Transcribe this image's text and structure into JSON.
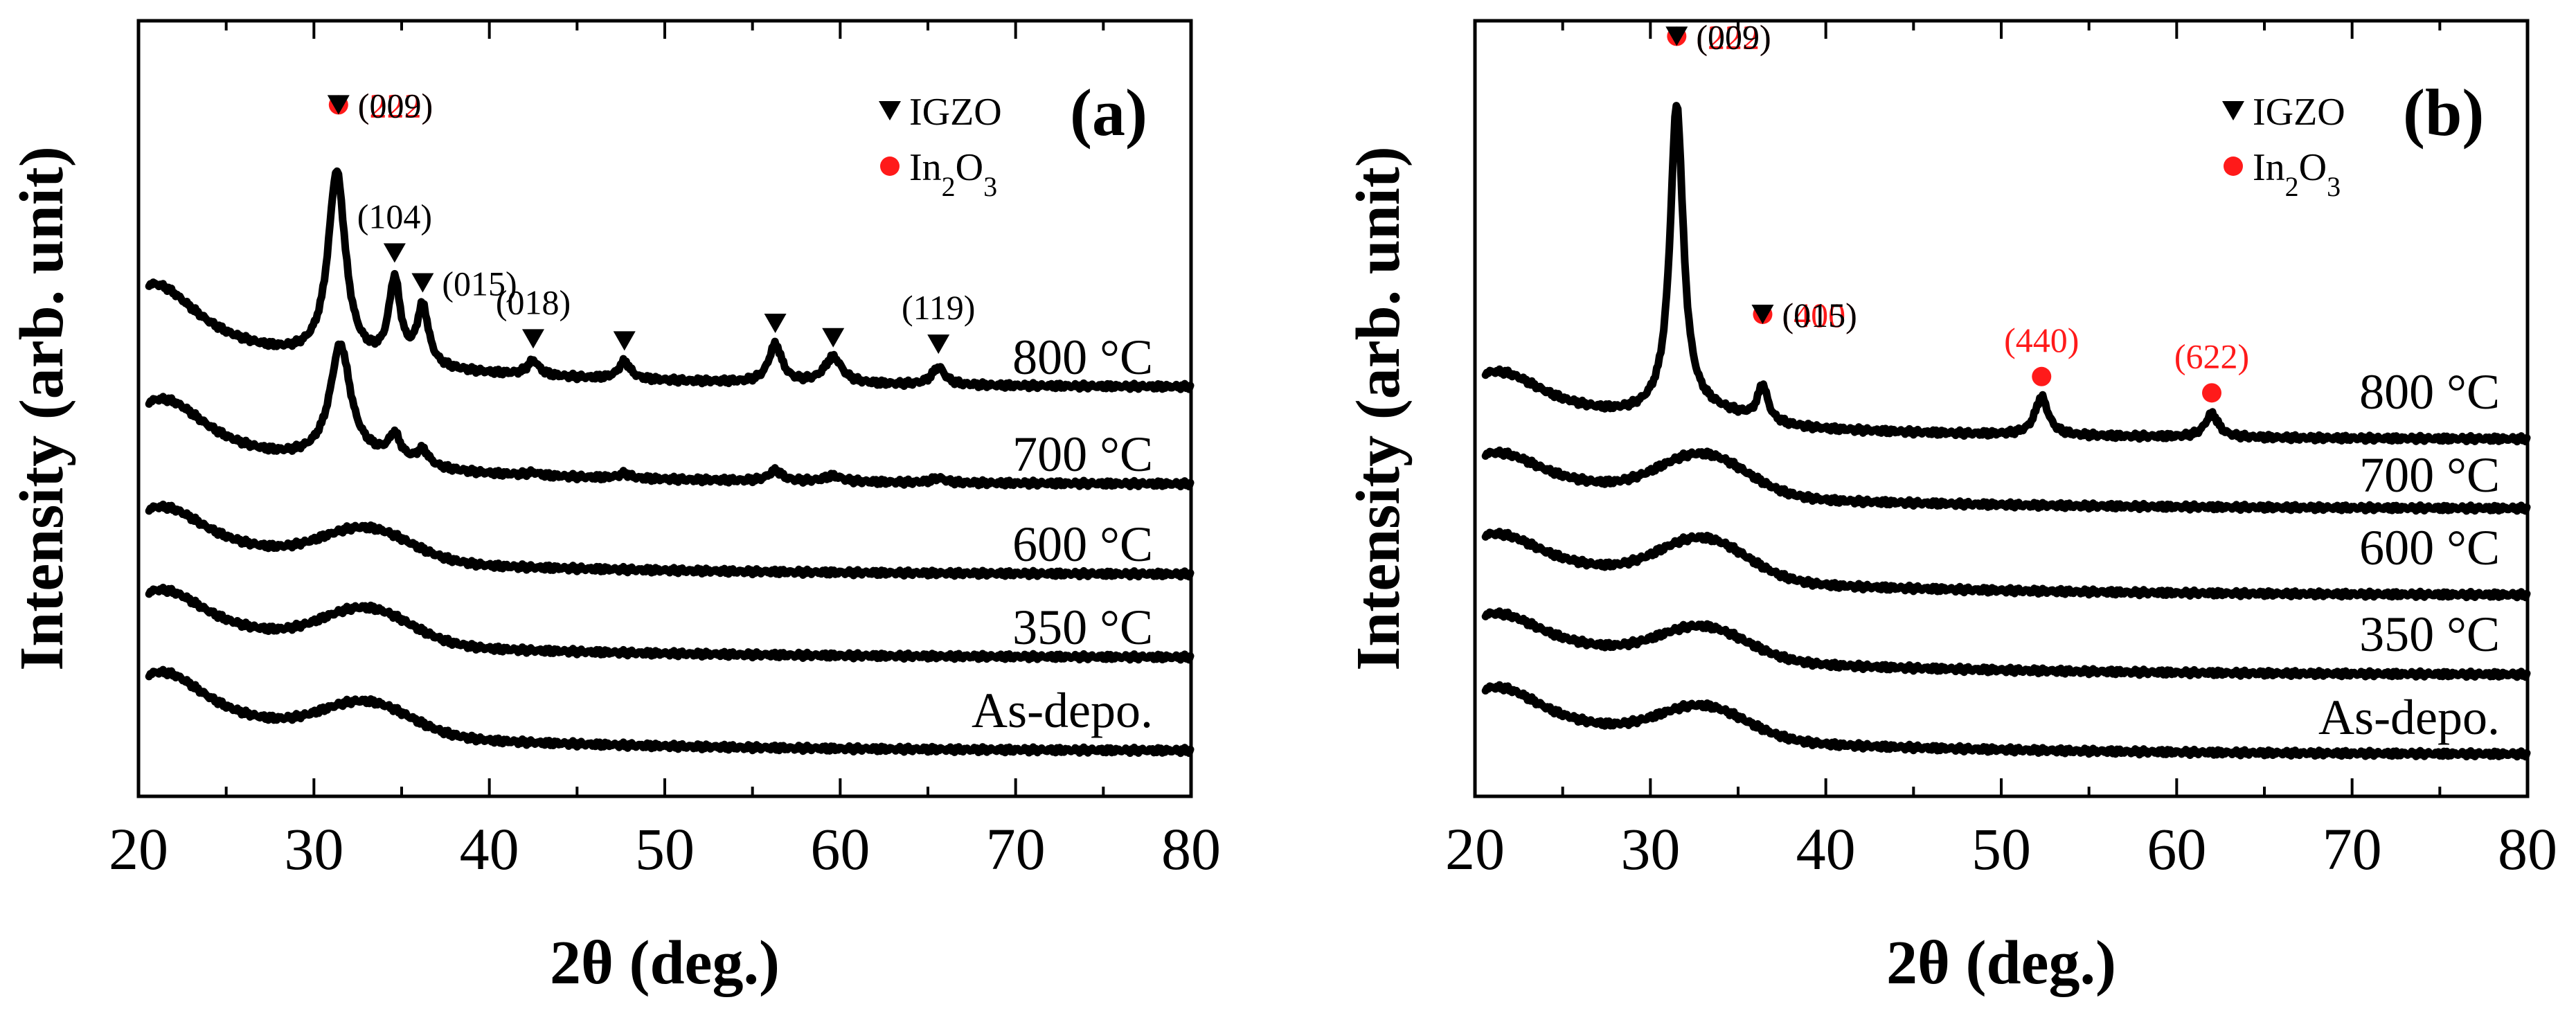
{
  "chart_data": [
    {
      "type": "line",
      "panel_label": "(a)",
      "xlabel": "2θ (deg.)",
      "ylabel": "Intensity (arb. unit)",
      "xlim": [
        20,
        80
      ],
      "xticks": [
        "20",
        "30",
        "40",
        "50",
        "60",
        "70",
        "80"
      ],
      "legend": [
        {
          "marker": "triangle",
          "label": "IGZO",
          "color": "#000000"
        },
        {
          "marker": "circle",
          "label": "In",
          "sub": "2",
          "label2": "O",
          "sub2": "3",
          "color": "#ff1a1a"
        }
      ],
      "series": [
        {
          "name": "800 °C",
          "offset": 6.0,
          "baseline_start": 0.8,
          "baseline_end": 0.0,
          "broad": 0.0,
          "peaks": [
            [
              21.0,
              1.0,
              3.0
            ],
            [
              31.3,
              3.2,
              0.6
            ],
            [
              34.6,
              1.4,
              0.4
            ],
            [
              36.2,
              1.0,
              0.4
            ],
            [
              42.5,
              0.25,
              0.4
            ],
            [
              47.7,
              0.3,
              0.4
            ],
            [
              56.3,
              0.65,
              0.45
            ],
            [
              59.6,
              0.45,
              0.6
            ],
            [
              65.6,
              0.3,
              0.45
            ]
          ]
        },
        {
          "name": "700 °C",
          "offset": 4.5,
          "baseline_start": 0.6,
          "baseline_end": 0.0,
          "broad": 0.15,
          "peaks": [
            [
              21.5,
              0.9,
              3.0
            ],
            [
              31.5,
              1.9,
              0.7
            ],
            [
              34.6,
              0.4,
              0.4
            ],
            [
              36.2,
              0.25,
              0.4
            ],
            [
              42.5,
              0.05,
              0.4
            ],
            [
              47.7,
              0.08,
              0.4
            ],
            [
              56.3,
              0.18,
              0.45
            ],
            [
              59.6,
              0.1,
              0.6
            ],
            [
              65.6,
              0.08,
              0.45
            ]
          ]
        },
        {
          "name": "600 °C",
          "offset": 3.0,
          "baseline_start": 0.5,
          "baseline_end": 0.0,
          "broad": 0.55,
          "peaks": [
            [
              21.5,
              0.7,
              3.0
            ]
          ]
        },
        {
          "name": "350 °C",
          "offset": 1.5,
          "baseline_start": 0.5,
          "baseline_end": 0.0,
          "broad": 0.6,
          "peaks": [
            [
              21.5,
              0.7,
              3.0
            ]
          ]
        },
        {
          "name": "As-depo.",
          "offset": 0.0,
          "baseline_start": 0.6,
          "baseline_end": 0.0,
          "broad": 0.55,
          "peaks": [
            [
              21.5,
              0.8,
              3.0
            ]
          ]
        }
      ],
      "annotations": [
        {
          "x": 31.4,
          "marker": "circle",
          "text": "(222)",
          "color": "#ff1a1a"
        },
        {
          "x": 31.4,
          "marker": "triangle",
          "text": "(009)",
          "color": "#000000"
        },
        {
          "x": 34.6,
          "marker": "triangle",
          "text": "(104)",
          "color": "#000000"
        },
        {
          "x": 36.2,
          "marker": "triangle",
          "text": "(015)",
          "color": "#000000"
        },
        {
          "x": 42.5,
          "marker": "triangle",
          "text": "(018)",
          "color": "#000000"
        },
        {
          "x": 47.7,
          "marker": "triangle",
          "text": "",
          "color": "#000000"
        },
        {
          "x": 56.3,
          "marker": "triangle",
          "text": "",
          "color": "#000000"
        },
        {
          "x": 59.6,
          "marker": "triangle",
          "text": "",
          "color": "#000000"
        },
        {
          "x": 65.6,
          "marker": "triangle",
          "text": "(119)",
          "color": "#000000"
        }
      ]
    },
    {
      "type": "line",
      "panel_label": "(b)",
      "xlabel": "2θ (deg.)",
      "ylabel": "Intensity (arb. unit)",
      "xlim": [
        20,
        80
      ],
      "xticks": [
        "20",
        "30",
        "40",
        "50",
        "60",
        "70",
        "80"
      ],
      "legend": [
        {
          "marker": "triangle",
          "label": "IGZO",
          "color": "#000000"
        },
        {
          "marker": "circle",
          "label": "In",
          "sub": "2",
          "label2": "O",
          "sub2": "3",
          "color": "#ff1a1a"
        }
      ],
      "series": [
        {
          "name": "800 °C",
          "offset": 6.0,
          "baseline_start": 0.6,
          "baseline_end": 0.0,
          "broad": 0.2,
          "peaks": [
            [
              21.5,
              0.6,
              3.0
            ],
            [
              31.5,
              5.2,
              0.45
            ],
            [
              36.4,
              0.6,
              0.35
            ],
            [
              52.3,
              0.65,
              0.45
            ],
            [
              62.0,
              0.4,
              0.45
            ]
          ]
        },
        {
          "name": "700 °C",
          "offset": 4.5,
          "baseline_start": 0.5,
          "baseline_end": 0.0,
          "broad": 0.7,
          "peaks": [
            [
              21.5,
              0.5,
              3.0
            ]
          ]
        },
        {
          "name": "600 °C",
          "offset": 3.0,
          "baseline_start": 0.6,
          "baseline_end": 0.0,
          "broad": 0.7,
          "peaks": [
            [
              21.5,
              0.5,
              3.0
            ]
          ]
        },
        {
          "name": "350 °C",
          "offset": 1.5,
          "baseline_start": 0.6,
          "baseline_end": 0.0,
          "broad": 0.55,
          "peaks": [
            [
              21.5,
              0.5,
              3.0
            ]
          ]
        },
        {
          "name": "As-depo.",
          "offset": 0.0,
          "baseline_start": 0.6,
          "baseline_end": 0.0,
          "broad": 0.55,
          "peaks": [
            [
              21.5,
              0.6,
              3.0
            ]
          ]
        }
      ],
      "annotations": [
        {
          "x": 31.5,
          "marker": "circle",
          "text": "(222)",
          "color": "#ff1a1a"
        },
        {
          "x": 31.5,
          "marker": "triangle",
          "text": "(009)",
          "color": "#000000"
        },
        {
          "x": 36.4,
          "marker": "circle",
          "text": "(400)",
          "color": "#ff1a1a"
        },
        {
          "x": 36.4,
          "marker": "triangle",
          "text": "(015)",
          "color": "#000000"
        },
        {
          "x": 52.3,
          "marker": "circle",
          "text": "(440)",
          "color": "#ff1a1a"
        },
        {
          "x": 62.0,
          "marker": "circle",
          "text": "(622)",
          "color": "#ff1a1a"
        }
      ]
    }
  ]
}
